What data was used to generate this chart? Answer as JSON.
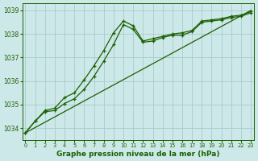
{
  "xlabel": "Graphe pression niveau de la mer (hPa)",
  "bg_color": "#cde8e8",
  "grid_color": "#a8cccc",
  "line_color": "#1a6000",
  "ylim": [
    1033.5,
    1039.3
  ],
  "xlim": [
    -0.3,
    23.3
  ],
  "yticks": [
    1034,
    1035,
    1036,
    1037,
    1038,
    1039
  ],
  "xticks": [
    0,
    1,
    2,
    3,
    4,
    5,
    6,
    7,
    8,
    9,
    10,
    11,
    12,
    13,
    14,
    15,
    16,
    17,
    18,
    19,
    20,
    21,
    22,
    23
  ],
  "series_straight": {
    "x": [
      0,
      23
    ],
    "y": [
      1033.8,
      1039.0
    ]
  },
  "series_upper": {
    "x": [
      0,
      1,
      2,
      3,
      4,
      5,
      6,
      7,
      8,
      9,
      10,
      11,
      12,
      13,
      14,
      15,
      16,
      17,
      18,
      19,
      20,
      21,
      22,
      23
    ],
    "y": [
      1033.8,
      1034.3,
      1034.75,
      1034.85,
      1035.3,
      1035.5,
      1036.05,
      1036.65,
      1037.3,
      1038.05,
      1038.55,
      1038.35,
      1037.7,
      1037.8,
      1037.9,
      1038.0,
      1038.05,
      1038.15,
      1038.55,
      1038.6,
      1038.65,
      1038.75,
      1038.8,
      1038.95
    ]
  },
  "series_lower": {
    "x": [
      0,
      1,
      2,
      3,
      4,
      5,
      6,
      7,
      8,
      9,
      10,
      11,
      12,
      13,
      14,
      15,
      16,
      17,
      18,
      19,
      20,
      21,
      22,
      23
    ],
    "y": [
      1033.8,
      1034.3,
      1034.7,
      1034.75,
      1035.05,
      1035.25,
      1035.65,
      1036.2,
      1036.85,
      1037.55,
      1038.4,
      1038.2,
      1037.65,
      1037.7,
      1037.85,
      1037.95,
      1037.95,
      1038.1,
      1038.5,
      1038.55,
      1038.6,
      1038.7,
      1038.75,
      1038.9
    ]
  }
}
